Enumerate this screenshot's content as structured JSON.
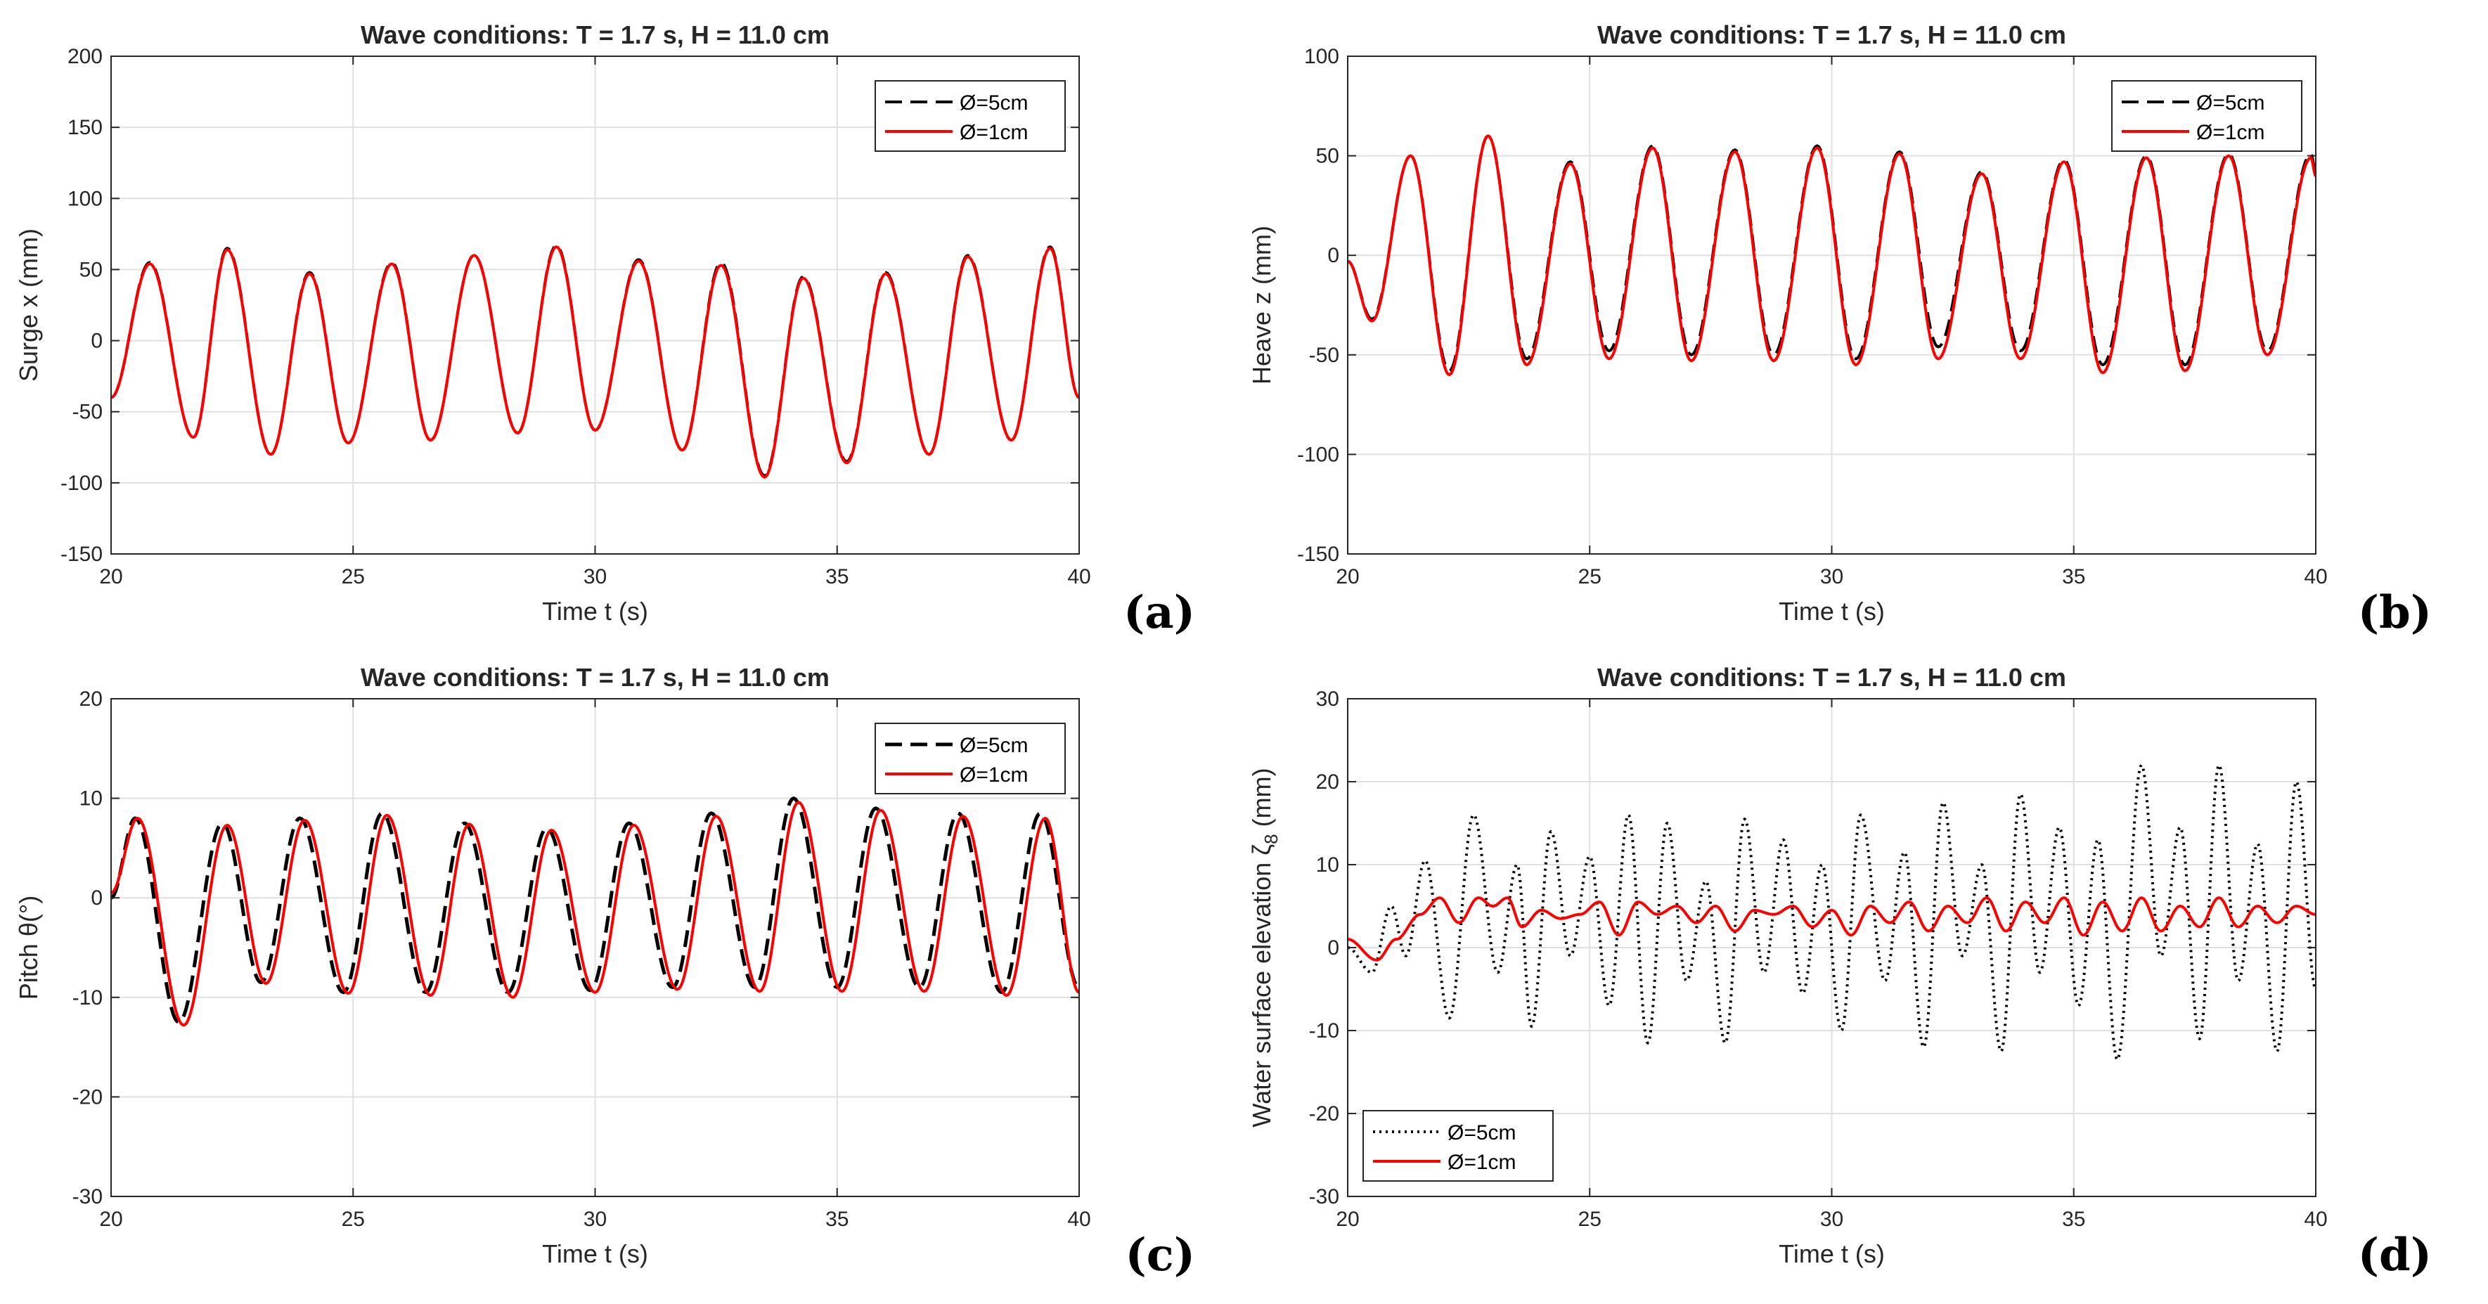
{
  "figure": {
    "colors": {
      "series_5cm": "#000000",
      "series_1cm": "#ff0000",
      "grid": "#e0e0e0",
      "axis": "#262626"
    }
  },
  "chart_data": [
    {
      "type": "line",
      "tag": "(a)",
      "title": "Wave conditions: T = 1.7 s, H = 11.0 cm",
      "xlabel": "Time  t (s)",
      "ylabel": "Surge  x (mm)",
      "xlim": [
        20,
        40
      ],
      "ylim": [
        -150,
        200
      ],
      "xticks": [
        20,
        25,
        30,
        35,
        40
      ],
      "yticks": [
        -150,
        -100,
        -50,
        0,
        50,
        100,
        150,
        200
      ],
      "grid": true,
      "legend_position": "top-right",
      "period": 1.7,
      "series": [
        {
          "name": "Ø=5cm",
          "style": "dashed",
          "start_value": -40,
          "extremes": [
            [
              20.8,
              55
            ],
            [
              21.7,
              -68
            ],
            [
              22.4,
              65
            ],
            [
              23.3,
              -80
            ],
            [
              24.1,
              48
            ],
            [
              24.9,
              -72
            ],
            [
              25.8,
              55
            ],
            [
              26.6,
              -70
            ],
            [
              27.5,
              60
            ],
            [
              28.4,
              -65
            ],
            [
              29.2,
              67
            ],
            [
              30.0,
              -63
            ],
            [
              30.9,
              57
            ],
            [
              31.8,
              -77
            ],
            [
              32.6,
              55
            ],
            [
              33.5,
              -95
            ],
            [
              34.3,
              45
            ],
            [
              35.2,
              -85
            ],
            [
              36.0,
              48
            ],
            [
              36.9,
              -80
            ],
            [
              37.7,
              60
            ],
            [
              38.6,
              -70
            ],
            [
              39.4,
              66
            ]
          ],
          "end_value": -40
        },
        {
          "name": "Ø=1cm",
          "style": "solid",
          "start_value": -40,
          "extremes": [
            [
              20.8,
              54
            ],
            [
              21.7,
              -68
            ],
            [
              22.4,
              64
            ],
            [
              23.3,
              -80
            ],
            [
              24.1,
              47
            ],
            [
              24.9,
              -72
            ],
            [
              25.8,
              54
            ],
            [
              26.6,
              -70
            ],
            [
              27.5,
              60
            ],
            [
              28.4,
              -65
            ],
            [
              29.2,
              66
            ],
            [
              30.0,
              -63
            ],
            [
              30.9,
              56
            ],
            [
              31.8,
              -77
            ],
            [
              32.6,
              53
            ],
            [
              33.5,
              -96
            ],
            [
              34.3,
              44
            ],
            [
              35.2,
              -86
            ],
            [
              36.0,
              47
            ],
            [
              36.9,
              -80
            ],
            [
              37.7,
              59
            ],
            [
              38.6,
              -70
            ],
            [
              39.4,
              65
            ]
          ],
          "end_value": -40
        }
      ]
    },
    {
      "type": "line",
      "tag": "(b)",
      "title": "Wave conditions: T = 1.7 s, H = 11.0 cm",
      "xlabel": "Time  t (s)",
      "ylabel": "Heave  z (mm)",
      "xlim": [
        20,
        40
      ],
      "ylim": [
        -150,
        100
      ],
      "xticks": [
        20,
        25,
        30,
        35,
        40
      ],
      "yticks": [
        -150,
        -100,
        -50,
        0,
        50,
        100
      ],
      "grid": true,
      "legend_position": "top-right",
      "period": 1.7,
      "series": [
        {
          "name": "Ø=5cm",
          "style": "dashed",
          "start_value": -3,
          "extremes": [
            [
              20.5,
              -32
            ],
            [
              21.3,
              50
            ],
            [
              22.1,
              -58
            ],
            [
              22.9,
              60
            ],
            [
              23.7,
              -52
            ],
            [
              24.6,
              47
            ],
            [
              25.4,
              -48
            ],
            [
              26.3,
              55
            ],
            [
              27.1,
              -50
            ],
            [
              28.0,
              53
            ],
            [
              28.8,
              -50
            ],
            [
              29.7,
              55
            ],
            [
              30.5,
              -52
            ],
            [
              31.4,
              52
            ],
            [
              32.2,
              -46
            ],
            [
              33.1,
              42
            ],
            [
              33.9,
              -48
            ],
            [
              34.8,
              48
            ],
            [
              35.6,
              -55
            ],
            [
              36.5,
              50
            ],
            [
              37.3,
              -55
            ],
            [
              38.2,
              51
            ],
            [
              39.0,
              -48
            ],
            [
              39.9,
              51
            ]
          ],
          "end_value": 42
        },
        {
          "name": "Ø=1cm",
          "style": "solid",
          "start_value": -3,
          "extremes": [
            [
              20.5,
              -33
            ],
            [
              21.3,
              50
            ],
            [
              22.1,
              -60
            ],
            [
              22.9,
              60
            ],
            [
              23.7,
              -55
            ],
            [
              24.6,
              46
            ],
            [
              25.4,
              -52
            ],
            [
              26.3,
              54
            ],
            [
              27.1,
              -53
            ],
            [
              28.0,
              52
            ],
            [
              28.8,
              -53
            ],
            [
              29.7,
              54
            ],
            [
              30.5,
              -55
            ],
            [
              31.4,
              51
            ],
            [
              32.2,
              -52
            ],
            [
              33.1,
              41
            ],
            [
              33.9,
              -52
            ],
            [
              34.8,
              47
            ],
            [
              35.6,
              -59
            ],
            [
              36.5,
              49
            ],
            [
              37.3,
              -58
            ],
            [
              38.2,
              50
            ],
            [
              39.0,
              -50
            ],
            [
              39.9,
              49
            ]
          ],
          "end_value": 40
        }
      ]
    },
    {
      "type": "line",
      "tag": "(c)",
      "title": "Wave conditions: T = 1.7 s, H = 11.0 cm",
      "xlabel": "Time  t (s)",
      "ylabel": "Pitch  θ(°)",
      "xlim": [
        20,
        40
      ],
      "ylim": [
        -30,
        20
      ],
      "xticks": [
        20,
        25,
        30,
        35,
        40
      ],
      "yticks": [
        -30,
        -20,
        -10,
        0,
        10,
        20
      ],
      "grid": true,
      "legend_position": "top-right",
      "period": 1.7,
      "series": [
        {
          "name": "Ø=5cm",
          "style": "dashed",
          "start_value": 0,
          "extremes": [
            [
              20.5,
              8
            ],
            [
              21.4,
              -12.5
            ],
            [
              22.3,
              7.5
            ],
            [
              23.1,
              -8.5
            ],
            [
              23.9,
              8
            ],
            [
              24.8,
              -9.5
            ],
            [
              25.6,
              8.5
            ],
            [
              26.5,
              -9.5
            ],
            [
              27.3,
              7.5
            ],
            [
              28.2,
              -9.5
            ],
            [
              29.0,
              7
            ],
            [
              29.9,
              -9.3
            ],
            [
              30.7,
              7.5
            ],
            [
              31.6,
              -9
            ],
            [
              32.4,
              8.5
            ],
            [
              33.3,
              -9
            ],
            [
              34.1,
              10
            ],
            [
              35.0,
              -9
            ],
            [
              35.8,
              9
            ],
            [
              36.7,
              -9
            ],
            [
              37.5,
              8.5
            ],
            [
              38.4,
              -9.5
            ],
            [
              39.2,
              8.5
            ]
          ],
          "end_value": -9
        },
        {
          "name": "Ø=1cm",
          "style": "solid",
          "start_value": 0.5,
          "extremes": [
            [
              20.55,
              8
            ],
            [
              21.5,
              -12.8
            ],
            [
              22.4,
              7.3
            ],
            [
              23.2,
              -8.6
            ],
            [
              24.0,
              7.8
            ],
            [
              24.9,
              -9.6
            ],
            [
              25.7,
              8.3
            ],
            [
              26.6,
              -9.8
            ],
            [
              27.4,
              7.4
            ],
            [
              28.3,
              -10
            ],
            [
              29.1,
              6.8
            ],
            [
              30.0,
              -9.5
            ],
            [
              30.8,
              7.3
            ],
            [
              31.7,
              -9.2
            ],
            [
              32.5,
              8.2
            ],
            [
              33.4,
              -9.4
            ],
            [
              34.2,
              9.6
            ],
            [
              35.1,
              -9.4
            ],
            [
              35.9,
              8.8
            ],
            [
              36.8,
              -9.4
            ],
            [
              37.6,
              8.2
            ],
            [
              38.5,
              -9.8
            ],
            [
              39.3,
              8
            ]
          ],
          "end_value": -9.5
        }
      ]
    },
    {
      "type": "line",
      "tag": "(d)",
      "title": "Wave conditions: T = 1.7 s, H = 11.0 cm",
      "xlabel": "Time  t (s)",
      "ylabel": "Water surface elevation ζ",
      "ylabel_subscript": "8",
      "ylabel_unit": " (mm)",
      "xlim": [
        20,
        40
      ],
      "ylim": [
        -30,
        30
      ],
      "xticks": [
        20,
        25,
        30,
        35,
        40
      ],
      "yticks": [
        -30,
        -20,
        -10,
        0,
        10,
        20,
        30
      ],
      "grid": true,
      "legend_position": "bottom-left",
      "series": [
        {
          "name": "Ø=5cm",
          "style": "dotted",
          "start_value": 0,
          "extremes": [
            [
              20.5,
              -3
            ],
            [
              20.9,
              5
            ],
            [
              21.2,
              -1
            ],
            [
              21.6,
              10.5
            ],
            [
              22.1,
              -8.5
            ],
            [
              22.6,
              16
            ],
            [
              23.1,
              -3
            ],
            [
              23.5,
              10
            ],
            [
              23.8,
              -9.5
            ],
            [
              24.2,
              14
            ],
            [
              24.6,
              -1
            ],
            [
              25.0,
              11
            ],
            [
              25.4,
              -7
            ],
            [
              25.8,
              16
            ],
            [
              26.2,
              -11.5
            ],
            [
              26.6,
              15
            ],
            [
              27.0,
              -4
            ],
            [
              27.4,
              8
            ],
            [
              27.8,
              -11.5
            ],
            [
              28.2,
              15.5
            ],
            [
              28.6,
              -3
            ],
            [
              29.0,
              13
            ],
            [
              29.4,
              -5.5
            ],
            [
              29.8,
              10
            ],
            [
              30.2,
              -10
            ],
            [
              30.6,
              16
            ],
            [
              31.1,
              -4
            ],
            [
              31.5,
              11.5
            ],
            [
              31.9,
              -12
            ],
            [
              32.3,
              17.5
            ],
            [
              32.7,
              -1
            ],
            [
              33.1,
              10
            ],
            [
              33.5,
              -12.5
            ],
            [
              33.9,
              18.5
            ],
            [
              34.3,
              -3
            ],
            [
              34.7,
              14.5
            ],
            [
              35.1,
              -7
            ],
            [
              35.5,
              13
            ],
            [
              35.9,
              -13.5
            ],
            [
              36.4,
              22
            ],
            [
              36.8,
              -1
            ],
            [
              37.2,
              14.5
            ],
            [
              37.6,
              -11
            ],
            [
              38.0,
              22
            ],
            [
              38.4,
              -4
            ],
            [
              38.8,
              12.5
            ],
            [
              39.2,
              -12.5
            ],
            [
              39.6,
              20
            ],
            [
              40.0,
              -5
            ]
          ],
          "end_value": -5
        },
        {
          "name": "Ø=1cm",
          "style": "solid",
          "start_value": 1,
          "extremes": [
            [
              20.6,
              -1.5
            ],
            [
              21.0,
              1
            ],
            [
              21.5,
              4
            ],
            [
              21.9,
              6
            ],
            [
              22.3,
              3
            ],
            [
              22.7,
              6
            ],
            [
              23.0,
              5
            ],
            [
              23.3,
              6
            ],
            [
              23.6,
              2.5
            ],
            [
              24.0,
              4.5
            ],
            [
              24.4,
              3.5
            ],
            [
              24.8,
              4
            ],
            [
              25.2,
              5.5
            ],
            [
              25.6,
              1.5
            ],
            [
              26.0,
              5.5
            ],
            [
              26.4,
              4
            ],
            [
              26.8,
              5
            ],
            [
              27.2,
              3
            ],
            [
              27.6,
              5
            ],
            [
              28.0,
              2
            ],
            [
              28.4,
              4.5
            ],
            [
              28.8,
              4
            ],
            [
              29.2,
              5
            ],
            [
              29.6,
              2.5
            ],
            [
              30.0,
              4.5
            ],
            [
              30.4,
              1.5
            ],
            [
              30.8,
              5
            ],
            [
              31.2,
              3
            ],
            [
              31.6,
              5.5
            ],
            [
              32.0,
              2
            ],
            [
              32.4,
              5
            ],
            [
              32.8,
              3
            ],
            [
              33.2,
              6
            ],
            [
              33.6,
              2
            ],
            [
              34.0,
              5.5
            ],
            [
              34.4,
              3
            ],
            [
              34.8,
              6
            ],
            [
              35.2,
              1.5
            ],
            [
              35.6,
              5.5
            ],
            [
              36.0,
              2
            ],
            [
              36.4,
              6
            ],
            [
              36.8,
              2
            ],
            [
              37.2,
              5
            ],
            [
              37.6,
              2.5
            ],
            [
              38.0,
              6
            ],
            [
              38.4,
              2.5
            ],
            [
              38.8,
              5
            ],
            [
              39.2,
              3
            ],
            [
              39.6,
              5
            ],
            [
              40.0,
              4
            ]
          ],
          "end_value": 4
        }
      ]
    }
  ]
}
